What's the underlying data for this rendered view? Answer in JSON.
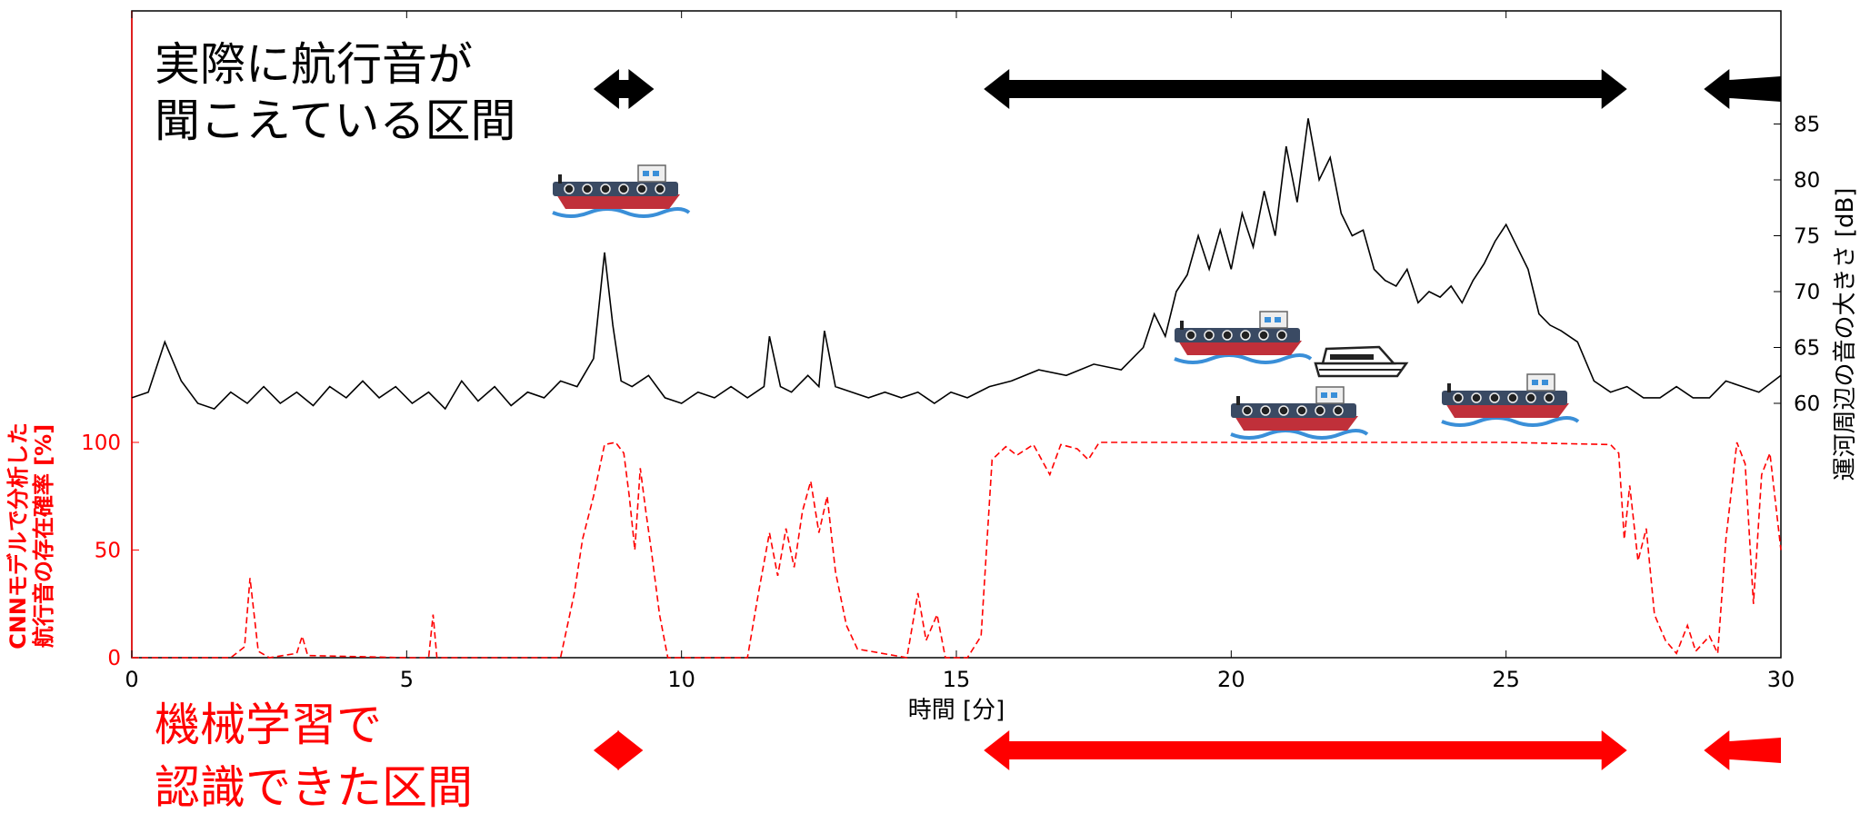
{
  "chart_data": {
    "type": "line",
    "xlabel": "時間 [分]",
    "xlim": [
      0,
      30
    ],
    "xticks": [
      0,
      5,
      10,
      15,
      20,
      25,
      30
    ],
    "y_right": {
      "label": "運河周辺の音の大きさ [dB]",
      "ticks": [
        60,
        65,
        70,
        75,
        80,
        85
      ],
      "color": "#000000"
    },
    "y_left": {
      "label_line1": "CNNモデルで分析した",
      "label_line2": "航行音の存在確率 [%]",
      "ticks": [
        0,
        50,
        100
      ],
      "color": "#ff0000"
    },
    "series": [
      {
        "points": [
          [
            0,
            60.5
          ],
          [
            0.3,
            61
          ],
          [
            0.6,
            65.5
          ],
          [
            0.9,
            62
          ],
          [
            1.2,
            60
          ],
          [
            1.5,
            59.5
          ],
          [
            1.8,
            61
          ],
          [
            2.1,
            60
          ],
          [
            2.4,
            61.5
          ],
          [
            2.7,
            60
          ],
          [
            3.0,
            61
          ],
          [
            3.3,
            59.8
          ],
          [
            3.6,
            61.5
          ],
          [
            3.9,
            60.5
          ],
          [
            4.2,
            62
          ],
          [
            4.5,
            60.5
          ],
          [
            4.8,
            61.5
          ],
          [
            5.1,
            60
          ],
          [
            5.4,
            61
          ],
          [
            5.7,
            59.5
          ],
          [
            6.0,
            62
          ],
          [
            6.3,
            60.2
          ],
          [
            6.6,
            61.5
          ],
          [
            6.9,
            59.8
          ],
          [
            7.2,
            61
          ],
          [
            7.5,
            60.5
          ],
          [
            7.8,
            62
          ],
          [
            8.1,
            61.5
          ],
          [
            8.4,
            64
          ],
          [
            8.6,
            73.5
          ],
          [
            8.75,
            67
          ],
          [
            8.9,
            62
          ],
          [
            9.1,
            61.5
          ],
          [
            9.4,
            62.5
          ],
          [
            9.7,
            60.5
          ],
          [
            10.0,
            60
          ],
          [
            10.3,
            61
          ],
          [
            10.6,
            60.5
          ],
          [
            10.9,
            61.5
          ],
          [
            11.2,
            60.5
          ],
          [
            11.5,
            61.5
          ],
          [
            11.6,
            66
          ],
          [
            11.8,
            61.5
          ],
          [
            12.0,
            61
          ],
          [
            12.3,
            62.5
          ],
          [
            12.5,
            61.5
          ],
          [
            12.6,
            66.5
          ],
          [
            12.8,
            61.5
          ],
          [
            13.1,
            61
          ],
          [
            13.4,
            60.5
          ],
          [
            13.7,
            61
          ],
          [
            14.0,
            60.5
          ],
          [
            14.3,
            61
          ],
          [
            14.6,
            60
          ],
          [
            14.9,
            61
          ],
          [
            15.2,
            60.5
          ],
          [
            15.6,
            61.5
          ],
          [
            16.0,
            62
          ],
          [
            16.5,
            63
          ],
          [
            17.0,
            62.5
          ],
          [
            17.5,
            63.5
          ],
          [
            18.0,
            63
          ],
          [
            18.4,
            65
          ],
          [
            18.6,
            68
          ],
          [
            18.8,
            66
          ],
          [
            19.0,
            70
          ],
          [
            19.2,
            71.5
          ],
          [
            19.4,
            75
          ],
          [
            19.6,
            72
          ],
          [
            19.8,
            75.5
          ],
          [
            20.0,
            72
          ],
          [
            20.2,
            77
          ],
          [
            20.4,
            74
          ],
          [
            20.6,
            79
          ],
          [
            20.8,
            75
          ],
          [
            21.0,
            83
          ],
          [
            21.2,
            78
          ],
          [
            21.4,
            85.5
          ],
          [
            21.6,
            80
          ],
          [
            21.8,
            82
          ],
          [
            22.0,
            77
          ],
          [
            22.2,
            75
          ],
          [
            22.4,
            75.5
          ],
          [
            22.6,
            72
          ],
          [
            22.8,
            71
          ],
          [
            23.0,
            70.5
          ],
          [
            23.2,
            72
          ],
          [
            23.4,
            69
          ],
          [
            23.6,
            70
          ],
          [
            23.8,
            69.5
          ],
          [
            24.0,
            70.5
          ],
          [
            24.2,
            69
          ],
          [
            24.4,
            71
          ],
          [
            24.6,
            72.5
          ],
          [
            24.8,
            74.5
          ],
          [
            25.0,
            76
          ],
          [
            25.2,
            74
          ],
          [
            25.4,
            72
          ],
          [
            25.6,
            68
          ],
          [
            25.8,
            67
          ],
          [
            26.0,
            66.5
          ],
          [
            26.3,
            65.5
          ],
          [
            26.6,
            62
          ],
          [
            26.9,
            61
          ],
          [
            27.2,
            61.5
          ],
          [
            27.5,
            60.5
          ],
          [
            27.8,
            60.5
          ],
          [
            28.1,
            61.5
          ],
          [
            28.4,
            60.5
          ],
          [
            28.7,
            60.5
          ],
          [
            29.0,
            62
          ],
          [
            29.3,
            61.5
          ],
          [
            29.6,
            61
          ],
          [
            30.0,
            62.5
          ]
        ],
        "axis": "right",
        "style": "solid",
        "color": "#000000"
      },
      {
        "points": [
          [
            0,
            0
          ],
          [
            1.8,
            0
          ],
          [
            2.05,
            5
          ],
          [
            2.15,
            37
          ],
          [
            2.3,
            3
          ],
          [
            2.5,
            0
          ],
          [
            3.0,
            2
          ],
          [
            3.1,
            10
          ],
          [
            3.2,
            1
          ],
          [
            5.0,
            0
          ],
          [
            5.4,
            0
          ],
          [
            5.48,
            20
          ],
          [
            5.55,
            0
          ],
          [
            7.8,
            0
          ],
          [
            8.05,
            30
          ],
          [
            8.2,
            55
          ],
          [
            8.4,
            75
          ],
          [
            8.6,
            99
          ],
          [
            8.8,
            100
          ],
          [
            8.95,
            95
          ],
          [
            9.05,
            75
          ],
          [
            9.15,
            50
          ],
          [
            9.25,
            88
          ],
          [
            9.35,
            68
          ],
          [
            9.45,
            50
          ],
          [
            9.6,
            20
          ],
          [
            9.75,
            0
          ],
          [
            11.2,
            0
          ],
          [
            11.4,
            30
          ],
          [
            11.6,
            58
          ],
          [
            11.75,
            38
          ],
          [
            11.9,
            60
          ],
          [
            12.05,
            42
          ],
          [
            12.2,
            68
          ],
          [
            12.35,
            82
          ],
          [
            12.5,
            58
          ],
          [
            12.65,
            75
          ],
          [
            12.8,
            40
          ],
          [
            13.0,
            15
          ],
          [
            13.2,
            4
          ],
          [
            14.1,
            0
          ],
          [
            14.3,
            30
          ],
          [
            14.45,
            8
          ],
          [
            14.65,
            20
          ],
          [
            14.8,
            0
          ],
          [
            15.2,
            0
          ],
          [
            15.45,
            10
          ],
          [
            15.65,
            92
          ],
          [
            15.9,
            98
          ],
          [
            16.1,
            94
          ],
          [
            16.4,
            99
          ],
          [
            16.7,
            85
          ],
          [
            16.9,
            99
          ],
          [
            17.2,
            97
          ],
          [
            17.4,
            92
          ],
          [
            17.6,
            100
          ],
          [
            20.0,
            100
          ],
          [
            25.0,
            100
          ],
          [
            26.9,
            99
          ],
          [
            27.05,
            95
          ],
          [
            27.15,
            55
          ],
          [
            27.25,
            80
          ],
          [
            27.4,
            45
          ],
          [
            27.55,
            60
          ],
          [
            27.7,
            20
          ],
          [
            27.9,
            8
          ],
          [
            28.1,
            2
          ],
          [
            28.3,
            15
          ],
          [
            28.45,
            3
          ],
          [
            28.7,
            10
          ],
          [
            28.85,
            2
          ],
          [
            29.0,
            55
          ],
          [
            29.2,
            100
          ],
          [
            29.35,
            90
          ],
          [
            29.5,
            25
          ],
          [
            29.65,
            85
          ],
          [
            29.8,
            95
          ],
          [
            30.0,
            50
          ]
        ],
        "axis": "left",
        "style": "dashed",
        "color": "#ff0000"
      }
    ],
    "annotations": {
      "heard_label_line1": "実際に航行音が",
      "heard_label_line2": "聞こえている区間",
      "heard_color": "#000000",
      "detected_label_line1": "機械学習で",
      "detected_label_line2": "認識できた区間",
      "detected_color": "#ff0000",
      "heard_intervals": [
        [
          8.4,
          9.5
        ],
        [
          15.5,
          27.2
        ],
        [
          28.6,
          30.0
        ]
      ],
      "detected_intervals": [
        [
          8.4,
          9.3
        ],
        [
          15.5,
          27.2
        ],
        [
          28.6,
          30.0
        ]
      ]
    }
  }
}
